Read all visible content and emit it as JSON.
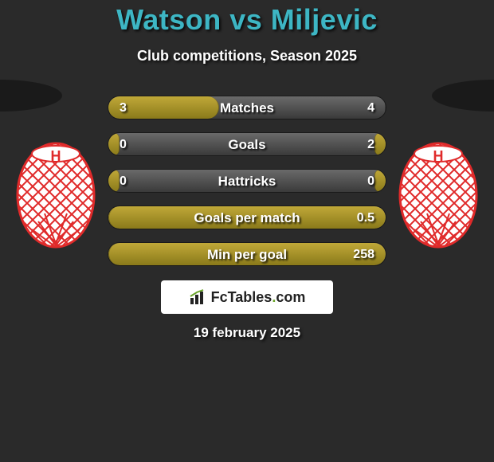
{
  "title": "Watson vs Miljevic",
  "subtitle": "Club competitions, Season 2025",
  "date": "19 february 2025",
  "logo": {
    "text_pre": "FcTables",
    "text_dot": ".",
    "text_post": "com"
  },
  "colors": {
    "background": "#2a2a2a",
    "title": "#3db6c4",
    "text": "#ffffff",
    "bar_bg_top": "#6a6a6a",
    "bar_bg_bottom": "#3a3a3a",
    "bar_fill_top": "#c0a838",
    "bar_fill_bottom": "#8a7a1a",
    "silhouette": "#1a1a1a",
    "crest_red": "#e02a2a",
    "crest_white": "#ffffff",
    "logo_box": "#ffffff",
    "logo_text": "#222222",
    "logo_accent": "#6aa52a"
  },
  "bars": [
    {
      "label": "Matches",
      "left_val": "3",
      "right_val": "4",
      "left_pct": 40,
      "right_pct": 0
    },
    {
      "label": "Goals",
      "left_val": "0",
      "right_val": "2",
      "left_pct": 4,
      "right_pct": 4
    },
    {
      "label": "Hattricks",
      "left_val": "0",
      "right_val": "0",
      "left_pct": 4,
      "right_pct": 4
    },
    {
      "label": "Goals per match",
      "left_val": "",
      "right_val": "0.5",
      "left_pct": 4,
      "right_pct": 100
    },
    {
      "label": "Min per goal",
      "left_val": "",
      "right_val": "258",
      "left_pct": 4,
      "right_pct": 100
    }
  ],
  "crest": {
    "letter": "H"
  }
}
